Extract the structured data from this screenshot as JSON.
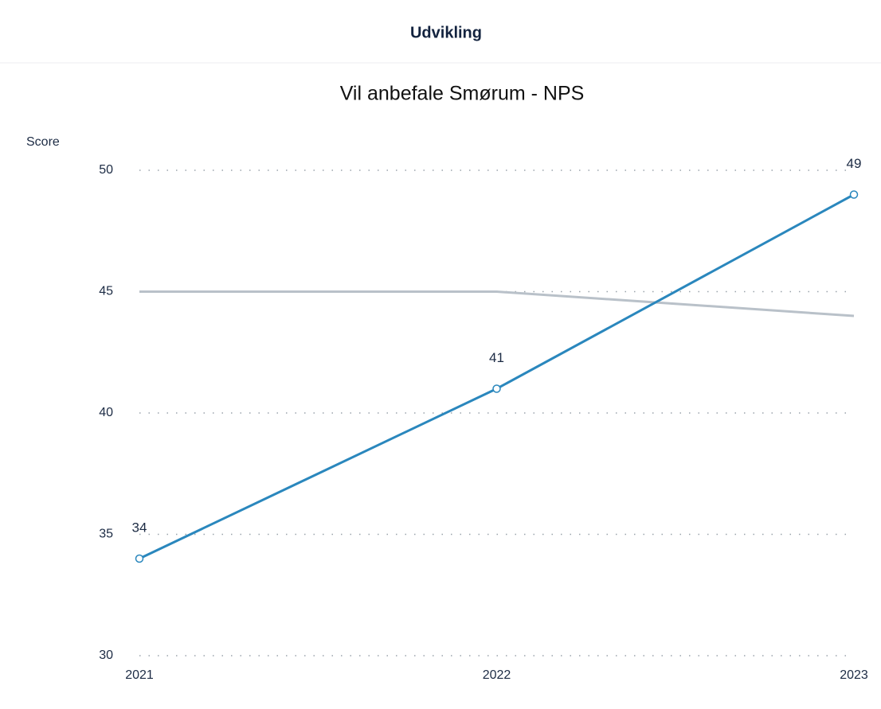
{
  "header": {
    "title": "Udvikling"
  },
  "chart_data": {
    "type": "line",
    "title": "Vil anbefale Smørum - NPS",
    "y_label": "Score",
    "categories": [
      "2021",
      "2022",
      "2023"
    ],
    "series": [
      {
        "color": "#2a87bd",
        "values": [
          34,
          41,
          49
        ],
        "data_labels": true,
        "markers": true
      },
      {
        "color": "#b9c1c9",
        "values": [
          45,
          45,
          44
        ],
        "data_labels": false,
        "markers": false
      }
    ],
    "ylim": [
      30,
      50
    ],
    "yticks": [
      30,
      35,
      40,
      45,
      50
    ],
    "grid": true
  }
}
